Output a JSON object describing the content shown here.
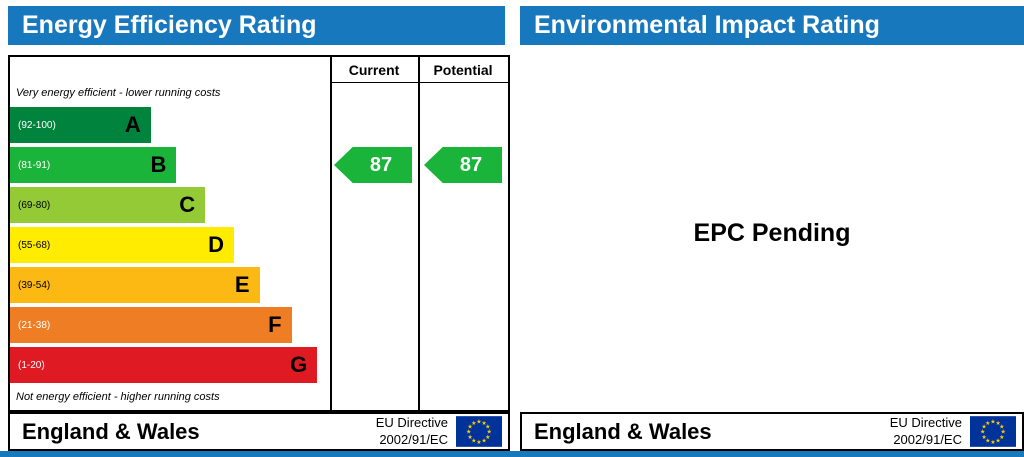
{
  "page": {
    "accent_blue": "#1878be",
    "eu_blue": "#003399",
    "star_yellow": "#ffcc00"
  },
  "energy": {
    "title": "Energy Efficiency Rating",
    "columns": {
      "current": "Current",
      "potential": "Potential"
    },
    "caption_top": "Very energy efficient - lower running costs",
    "caption_bottom": "Not energy efficient - higher running costs",
    "bands": [
      {
        "letter": "A",
        "range": "(92-100)",
        "color": "#00843d",
        "range_color": "#ffffff",
        "width": "44%"
      },
      {
        "letter": "B",
        "range": "(81-91)",
        "color": "#1ab43a",
        "range_color": "#ffffff",
        "width": "52%"
      },
      {
        "letter": "C",
        "range": "(69-80)",
        "color": "#94ca36",
        "range_color": "#000000",
        "width": "61%"
      },
      {
        "letter": "D",
        "range": "(55-68)",
        "color": "#ffec00",
        "range_color": "#000000",
        "width": "70%"
      },
      {
        "letter": "E",
        "range": "(39-54)",
        "color": "#fcb813",
        "range_color": "#000000",
        "width": "78%"
      },
      {
        "letter": "F",
        "range": "(21-38)",
        "color": "#ef7d23",
        "range_color": "#ffffff",
        "width": "88%"
      },
      {
        "letter": "G",
        "range": "(1-20)",
        "color": "#e01a22",
        "range_color": "#ffffff",
        "width": "96%"
      }
    ],
    "current": {
      "value": "87",
      "band": "B",
      "color": "#1ab43a"
    },
    "potential": {
      "value": "87",
      "band": "B",
      "color": "#1ab43a"
    },
    "footer": {
      "region": "England & Wales",
      "directive_line1": "EU Directive",
      "directive_line2": "2002/91/EC"
    }
  },
  "environmental": {
    "title": "Environmental Impact Rating",
    "pending_text": "EPC Pending",
    "footer": {
      "region": "England & Wales",
      "directive_line1": "EU Directive",
      "directive_line2": "2002/91/EC"
    }
  },
  "chart_data": {
    "type": "bar",
    "subtype": "epc-energy-efficiency-rating",
    "title": "Energy Efficiency Rating",
    "bands": [
      {
        "label": "A",
        "range_low": 92,
        "range_high": 100
      },
      {
        "label": "B",
        "range_low": 81,
        "range_high": 91
      },
      {
        "label": "C",
        "range_low": 69,
        "range_high": 80
      },
      {
        "label": "D",
        "range_low": 55,
        "range_high": 68
      },
      {
        "label": "E",
        "range_low": 39,
        "range_high": 54
      },
      {
        "label": "F",
        "range_low": 21,
        "range_high": 38
      },
      {
        "label": "G",
        "range_low": 1,
        "range_high": 20
      }
    ],
    "current_rating": 87,
    "current_band": "B",
    "potential_rating": 87,
    "potential_band": "B",
    "annotations": [
      "Very energy efficient - lower running costs",
      "Not energy efficient - higher running costs",
      "England & Wales",
      "EU Directive 2002/91/EC"
    ],
    "environmental_panel_status": "EPC Pending"
  }
}
